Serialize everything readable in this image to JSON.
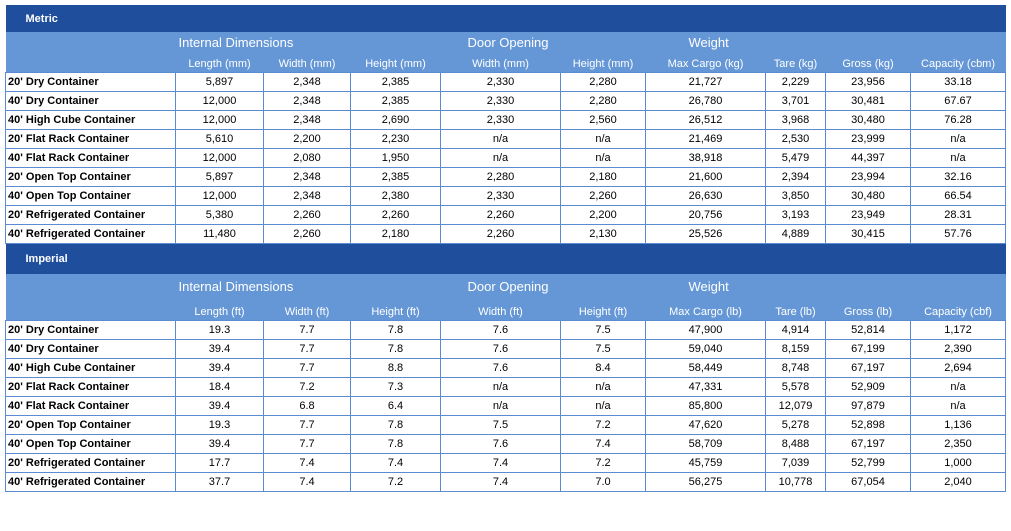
{
  "sections": [
    {
      "title": "Metric",
      "groups": [
        "Internal Dimensions",
        "Door Opening",
        "Weight"
      ],
      "columns": [
        "Length (mm)",
        "Width (mm)",
        "Height (mm)",
        "Width (mm)",
        "Height (mm)",
        "Max Cargo (kg)",
        "Tare (kg)",
        "Gross  (kg)",
        "Capacity (cbm)"
      ],
      "rows": [
        [
          "20' Dry Container",
          "5,897",
          "2,348",
          "2,385",
          "2,330",
          "2,280",
          "21,727",
          "2,229",
          "23,956",
          "33.18"
        ],
        [
          "40' Dry Container",
          "12,000",
          "2,348",
          "2,385",
          "2,330",
          "2,280",
          "26,780",
          "3,701",
          "30,481",
          "67.67"
        ],
        [
          "40' High Cube Container",
          "12,000",
          "2,348",
          "2,690",
          "2,330",
          "2,560",
          "26,512",
          "3,968",
          "30,480",
          "76.28"
        ],
        [
          "20' Flat Rack Container",
          "5,610",
          "2,200",
          "2,230",
          "n/a",
          "n/a",
          "21,469",
          "2,530",
          "23,999",
          "n/a"
        ],
        [
          "40' Flat Rack Container",
          "12,000",
          "2,080",
          "1,950",
          "n/a",
          "n/a",
          "38,918",
          "5,479",
          "44,397",
          "n/a"
        ],
        [
          "20' Open Top Container",
          "5,897",
          "2,348",
          "2,385",
          "2,280",
          "2,180",
          "21,600",
          "2,394",
          "23,994",
          "32.16"
        ],
        [
          "40' Open Top Container",
          "12,000",
          "2,348",
          "2,380",
          "2,330",
          "2,260",
          "26,630",
          "3,850",
          "30,480",
          "66.54"
        ],
        [
          "20' Refrigerated Container",
          "5,380",
          "2,260",
          "2,260",
          "2,260",
          "2,200",
          "20,756",
          "3,193",
          "23,949",
          "28.31"
        ],
        [
          "40' Refrigerated Container",
          "11,480",
          "2,260",
          "2,180",
          "2,260",
          "2,130",
          "25,526",
          "4,889",
          "30,415",
          "57.76"
        ]
      ]
    },
    {
      "title": "Imperial",
      "groups": [
        "Internal Dimensions",
        "Door Opening",
        "Weight"
      ],
      "columns": [
        "Length (ft)",
        "Width (ft)",
        "Height (ft)",
        "Width (ft)",
        "Height (ft)",
        "Max Cargo (lb)",
        "Tare (lb)",
        "Gross  (lb)",
        "Capacity (cbf)"
      ],
      "rows": [
        [
          "20' Dry Container",
          "19.3",
          "7.7",
          "7.8",
          "7.6",
          "7.5",
          "47,900",
          "4,914",
          "52,814",
          "1,172"
        ],
        [
          "40' Dry Container",
          "39.4",
          "7.7",
          "7.8",
          "7.6",
          "7.5",
          "59,040",
          "8,159",
          "67,199",
          "2,390"
        ],
        [
          "40' High Cube Container",
          "39.4",
          "7.7",
          "8.8",
          "7.6",
          "8.4",
          "58,449",
          "8,748",
          "67,197",
          "2,694"
        ],
        [
          "20' Flat Rack Container",
          "18.4",
          "7.2",
          "7.3",
          "n/a",
          "n/a",
          "47,331",
          "5,578",
          "52,909",
          "n/a"
        ],
        [
          "40' Flat Rack Container",
          "39.4",
          "6.8",
          "6.4",
          "n/a",
          "n/a",
          "85,800",
          "12,079",
          "97,879",
          "n/a"
        ],
        [
          "20' Open Top Container",
          "19.3",
          "7.7",
          "7.8",
          "7.5",
          "7.2",
          "47,620",
          "5,278",
          "52,898",
          "1,136"
        ],
        [
          "40' Open Top Container",
          "39.4",
          "7.7",
          "7.8",
          "7.6",
          "7.4",
          "58,709",
          "8,488",
          "67,197",
          "2,350"
        ],
        [
          "20' Refrigerated Container",
          "17.7",
          "7.4",
          "7.4",
          "7.4",
          "7.2",
          "45,759",
          "7,039",
          "52,799",
          "1,000"
        ],
        [
          "40' Refrigerated Container",
          "37.7",
          "7.4",
          "7.2",
          "7.4",
          "7.0",
          "56,275",
          "10,778",
          "67,054",
          "2,040"
        ]
      ]
    }
  ]
}
